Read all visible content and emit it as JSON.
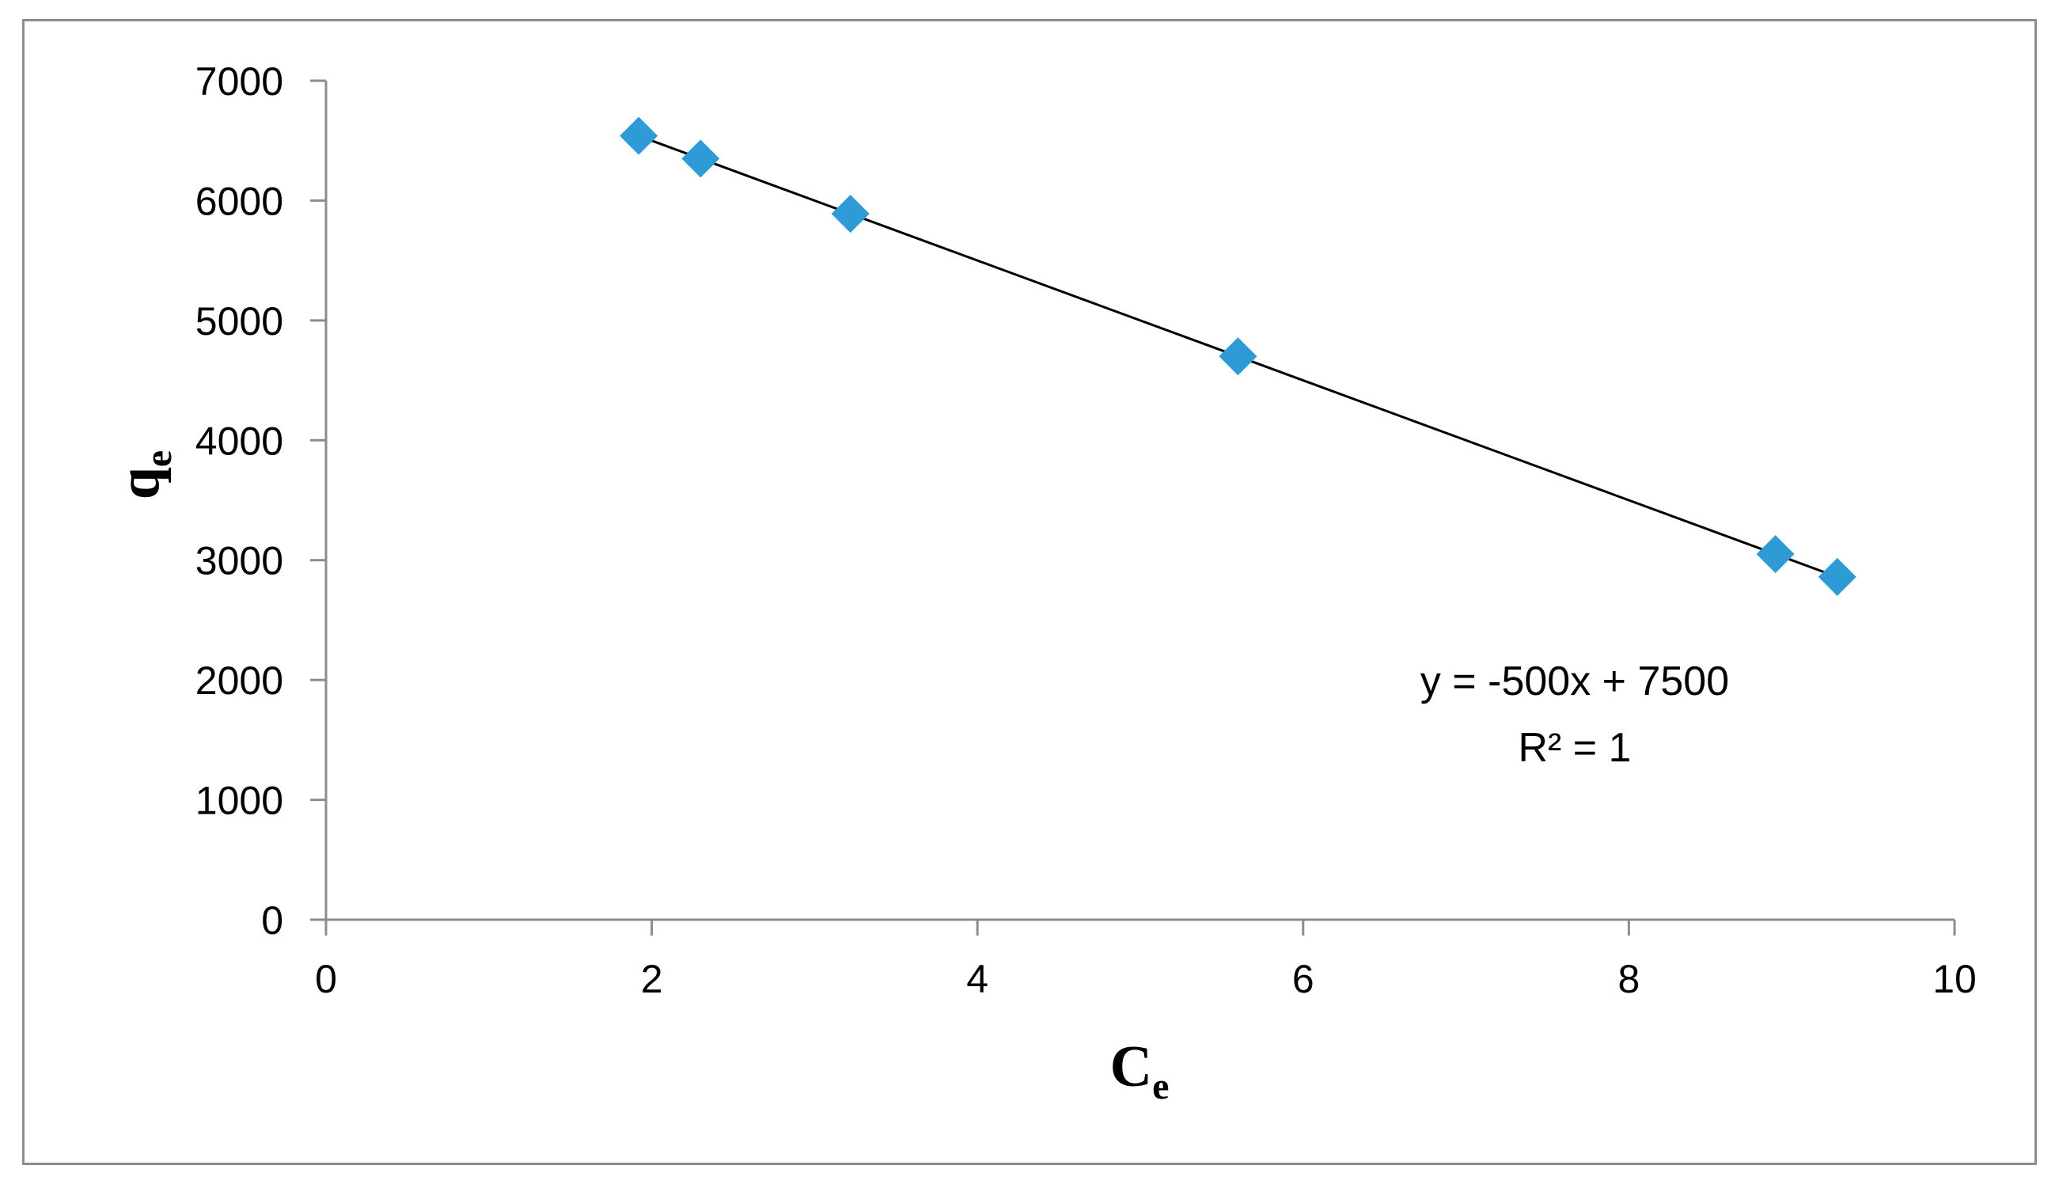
{
  "chart_data": {
    "type": "scatter",
    "title": "",
    "xlabel": {
      "base": "C",
      "subscript": "e"
    },
    "ylabel": {
      "base": "q",
      "subscript": "e"
    },
    "xlim": [
      0,
      10
    ],
    "ylim": [
      0,
      7000
    ],
    "x_ticks": [
      0,
      2,
      4,
      6,
      8,
      10
    ],
    "y_ticks": [
      0,
      1000,
      2000,
      3000,
      4000,
      5000,
      6000,
      7000
    ],
    "grid": false,
    "legend": "none",
    "series": [
      {
        "marker": "diamond",
        "color": "#2e9bd6",
        "points": [
          {
            "x": 1.92,
            "y": 6540
          },
          {
            "x": 2.3,
            "y": 6350
          },
          {
            "x": 3.22,
            "y": 5890
          },
          {
            "x": 5.6,
            "y": 4700
          },
          {
            "x": 8.9,
            "y": 3050
          },
          {
            "x": 9.28,
            "y": 2860
          }
        ]
      }
    ],
    "trendline": {
      "type": "linear",
      "slope": -500,
      "intercept": 7500,
      "x_range": [
        1.92,
        9.28
      ],
      "color": "#000000"
    },
    "annotations": {
      "equation": "y = -500x + 7500",
      "r_squared": "R² = 1"
    }
  }
}
